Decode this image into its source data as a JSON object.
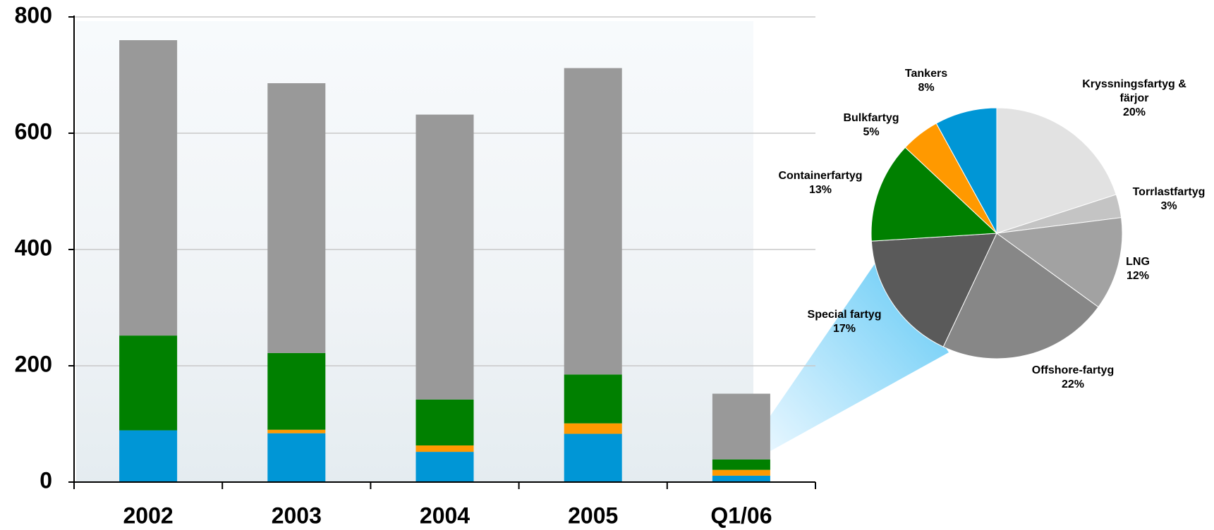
{
  "chart_data": [
    {
      "type": "stacked-bar",
      "categories": [
        "2002",
        "2003",
        "2004",
        "2005",
        "Q1/06"
      ],
      "series": [
        {
          "color": "#0096d6",
          "values": [
            89,
            84,
            52,
            83,
            11
          ]
        },
        {
          "color": "#ff9900",
          "values": [
            0,
            6,
            11,
            18,
            10
          ]
        },
        {
          "color": "#008000",
          "values": [
            163,
            132,
            79,
            84,
            18
          ]
        },
        {
          "color": "#999999",
          "values": [
            508,
            464,
            490,
            527,
            113
          ]
        }
      ],
      "ylim": [
        0,
        800
      ],
      "yticks": [
        0,
        200,
        400,
        600,
        800
      ],
      "grid": true
    },
    {
      "type": "pie",
      "categories": [
        "Kryssningsfartyg & färjor",
        "Torrlastfartyg",
        "LNG",
        "Offshore-fartyg",
        "Special fartyg",
        "Containerfartyg",
        "Bulkfartyg",
        "Tankers"
      ],
      "values": [
        20,
        3,
        12,
        22,
        17,
        13,
        5,
        8
      ],
      "value_labels": [
        "20%",
        "3%",
        "12%",
        "22%",
        "17%",
        "13%",
        "5%",
        "8%"
      ],
      "colors": [
        "#e2e2e2",
        "#c4c4c4",
        "#a2a2a2",
        "#878787",
        "#5a5a5a",
        "#008000",
        "#ff9900",
        "#0096d6"
      ]
    }
  ]
}
